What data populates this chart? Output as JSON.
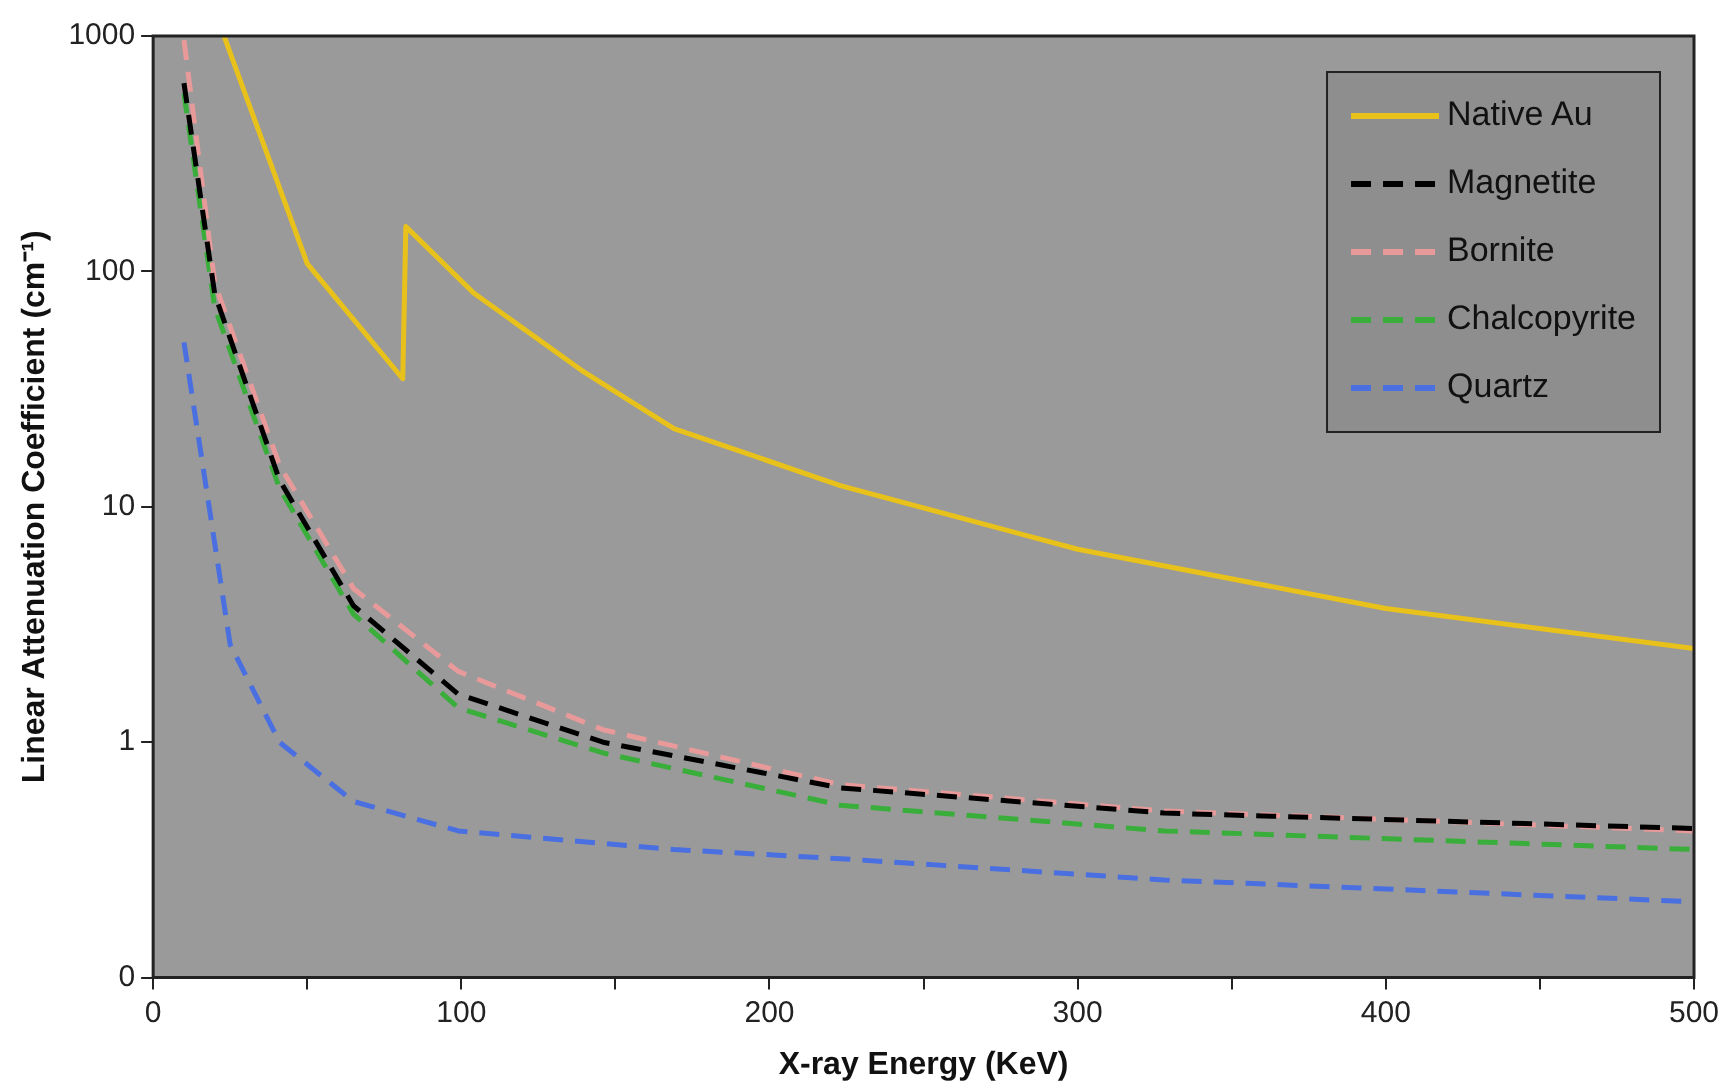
{
  "chart_data": {
    "type": "line",
    "xlabel": "X-ray Energy (KeV)",
    "ylabel": "Linear Attenuation Coefficient (cm⁻¹)",
    "log": "y",
    "xlim": [
      0,
      500
    ],
    "ylim": [
      0.1,
      1000
    ],
    "xticks": [
      0,
      {
        "value": 50,
        "label": null
      },
      100,
      {
        "value": 150,
        "label": null
      },
      200,
      {
        "value": 250,
        "label": null
      },
      300,
      {
        "value": 350,
        "label": null
      },
      400,
      {
        "value": 450,
        "label": null
      },
      500
    ],
    "yticks": [
      {
        "value": 0.1,
        "label": "0"
      },
      1,
      10,
      100,
      1000
    ],
    "grid": false,
    "legend": "top right",
    "marker": "none",
    "series": [
      {
        "name": "Native Au",
        "color": "#e8c21a",
        "line_style": "solid",
        "x": [
          23,
          50,
          81,
          82,
          104,
          139,
          169,
          223,
          300,
          400,
          500
        ],
        "values": [
          1000,
          108,
          35,
          155,
          81,
          38,
          21.5,
          12.3,
          6.6,
          3.7,
          2.5
        ]
      },
      {
        "name": "Magnetite",
        "color": "#000000",
        "line_style": "dashed",
        "x": [
          10,
          20,
          41,
          65,
          99,
          146,
          223,
          328,
          500
        ],
        "values": [
          630,
          80,
          13,
          3.8,
          1.6,
          1.0,
          0.64,
          0.5,
          0.43
        ]
      },
      {
        "name": "Bornite",
        "color": "#e89a9a",
        "line_style": "dashed",
        "x": [
          10,
          20,
          41,
          65,
          99,
          146,
          223,
          328,
          500
        ],
        "values": [
          960,
          89,
          15,
          4.5,
          2.0,
          1.13,
          0.66,
          0.51,
          0.42
        ]
      },
      {
        "name": "Chalcopyrite",
        "color": "#3aae3a",
        "line_style": "dashed",
        "x": [
          10,
          20,
          41,
          65,
          99,
          146,
          223,
          328,
          500
        ],
        "values": [
          570,
          70,
          12,
          3.5,
          1.4,
          0.9,
          0.54,
          0.42,
          0.35
        ]
      },
      {
        "name": "Quartz",
        "color": "#4a6fe0",
        "line_style": "dashed",
        "x": [
          10,
          25,
          41,
          65,
          99,
          169,
          223,
          328,
          500
        ],
        "values": [
          50,
          2.6,
          1.0,
          0.56,
          0.42,
          0.35,
          0.32,
          0.26,
          0.21
        ]
      }
    ]
  }
}
